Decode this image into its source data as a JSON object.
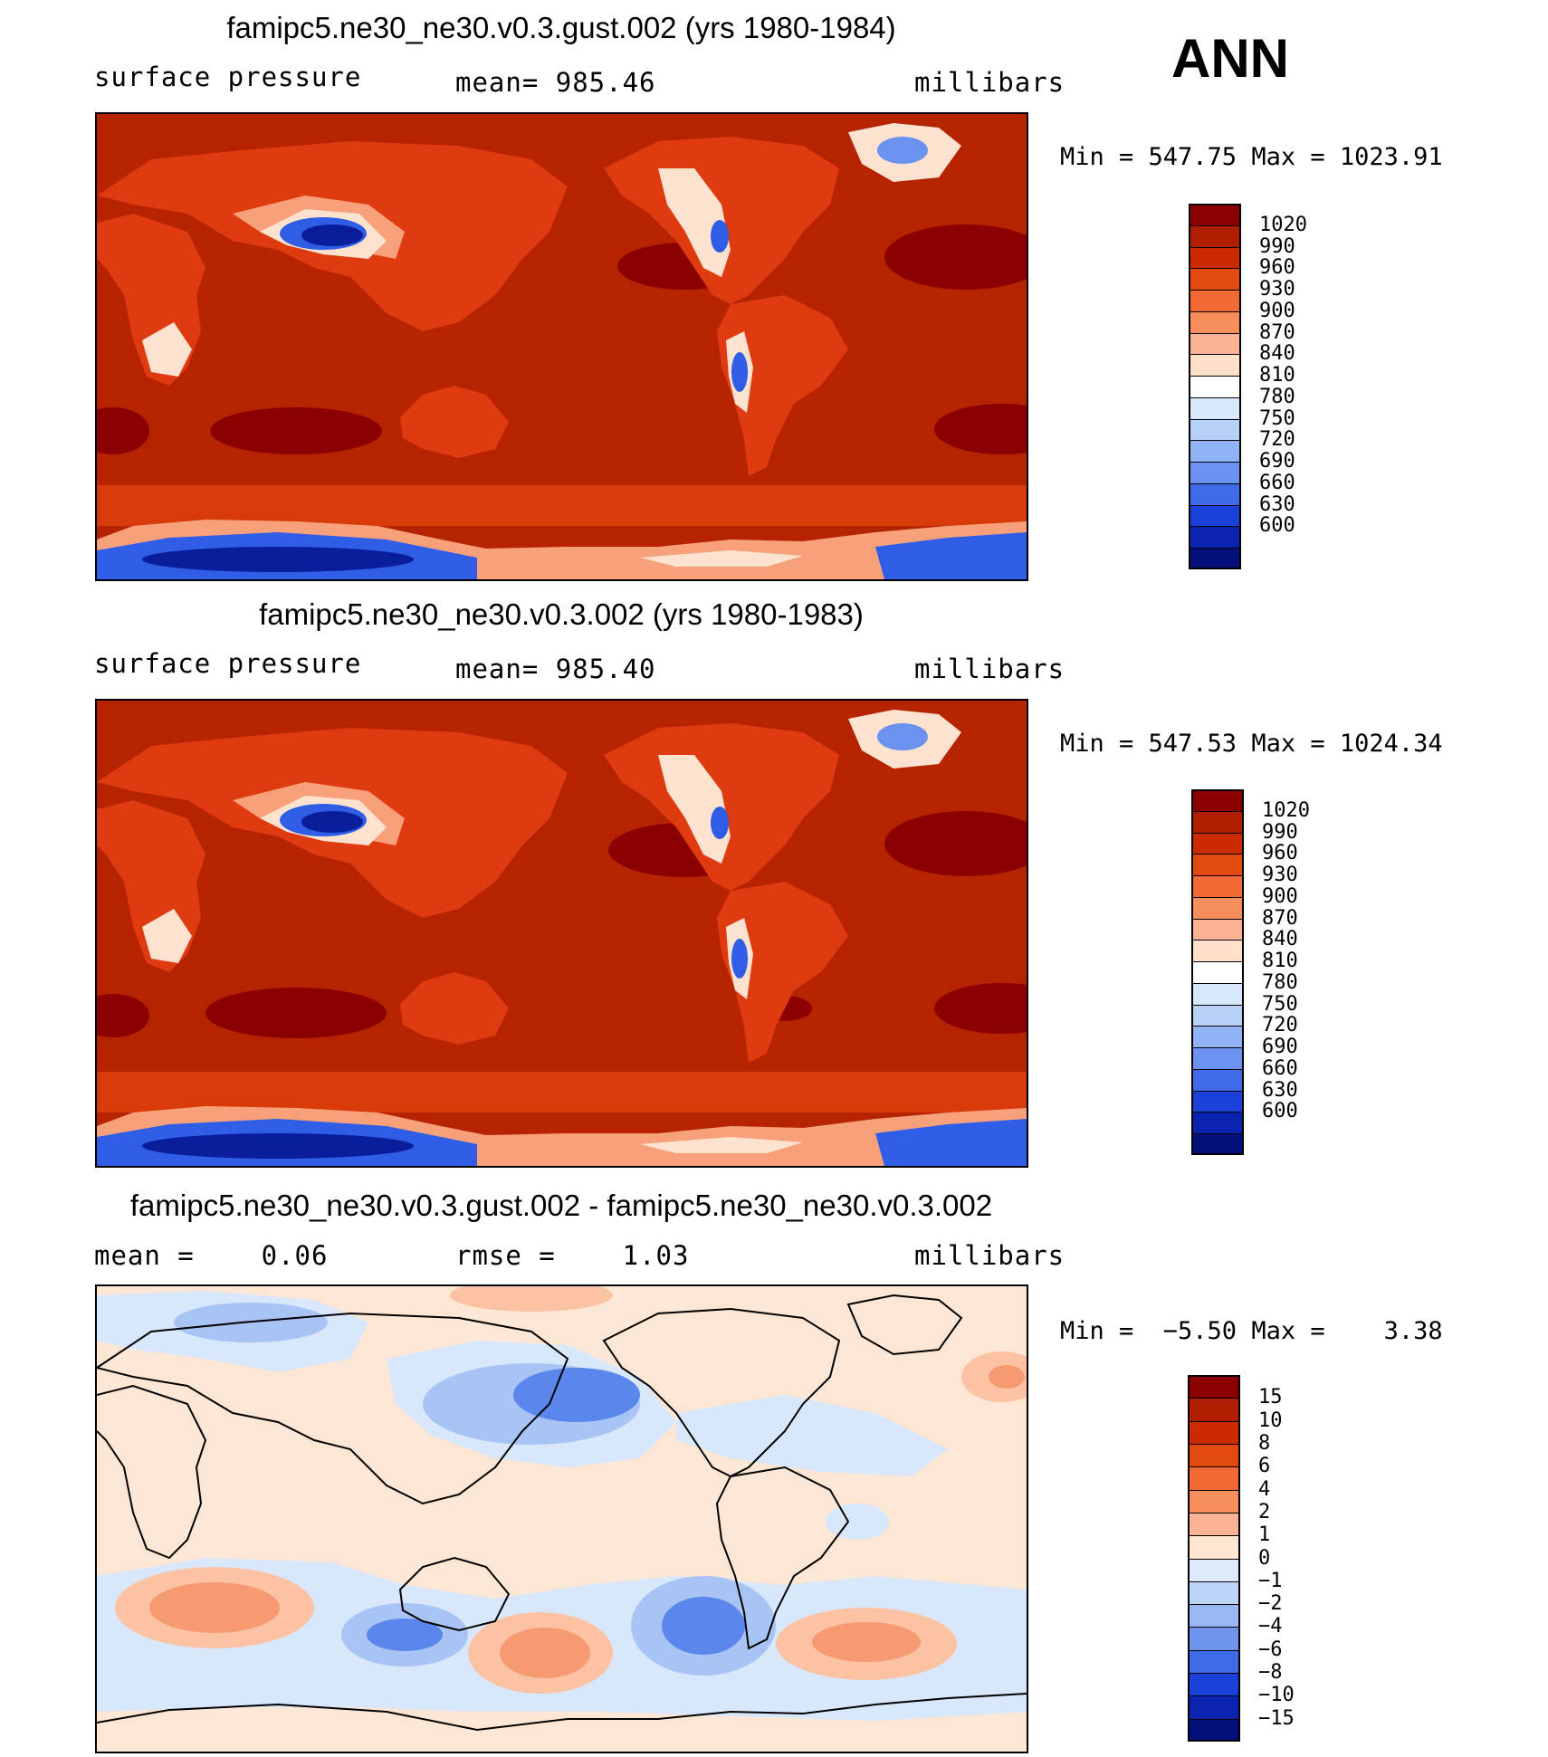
{
  "season": "ANN",
  "panels": [
    {
      "title": "famipc5.ne30_ne30.v0.3.gust.002 (yrs 1980-1984)",
      "left_label": "surface pressure",
      "center_label": "mean= 985.46",
      "right_label": "millibars",
      "minmax": "Min = 547.75 Max = 1023.91"
    },
    {
      "title": "famipc5.ne30_ne30.v0.3.002 (yrs 1980-1983)",
      "left_label": "surface pressure",
      "center_label": "mean= 985.40",
      "right_label": "millibars",
      "minmax": "Min = 547.53 Max = 1024.34"
    },
    {
      "title": "famipc5.ne30_ne30.v0.3.gust.002 - famipc5.ne30_ne30.v0.3.002",
      "left_label": "mean =    0.06",
      "center_label": "rmse =    1.03",
      "right_label": "millibars",
      "minmax": "Min =  −5.50 Max =    3.38"
    }
  ],
  "colorbars": {
    "pressure": {
      "labels": [
        "1020",
        "990",
        "960",
        "930",
        "900",
        "870",
        "840",
        "810",
        "780",
        "750",
        "720",
        "690",
        "660",
        "630",
        "600"
      ],
      "colors": [
        "#8b0000",
        "#b01e00",
        "#cc2a00",
        "#e24a10",
        "#f26a33",
        "#f88e5c",
        "#fbb394",
        "#fee0c8",
        "#ffffff",
        "#d7e8fb",
        "#b6d0f7",
        "#90b4f3",
        "#6a92ee",
        "#3f6ae8",
        "#1a42d8",
        "#0a24b0",
        "#04107a"
      ]
    },
    "difference": {
      "labels": [
        "15",
        "10",
        "8",
        "6",
        "4",
        "2",
        "1",
        "0",
        "−1",
        "−2",
        "−4",
        "−6",
        "−8",
        "−10",
        "−15"
      ],
      "colors": [
        "#8b0000",
        "#b01e00",
        "#cc2a00",
        "#e24a10",
        "#f26a33",
        "#f88e5c",
        "#fbb394",
        "#fee6d0",
        "#dceafb",
        "#bcd4f7",
        "#9ab9f3",
        "#6f94ee",
        "#3f6ae8",
        "#1a42d8",
        "#0a24b0",
        "#04107a"
      ]
    }
  },
  "map_colors": {
    "ocean_full": "#b62300",
    "high_cell": "#8b0000",
    "land_mid": "#e03a10",
    "land_light": "#f7a07a",
    "land_pale": "#fde3cf",
    "ice_blue": "#2f5de6",
    "ice_dark": "#0a1e9c",
    "diff_base": "#fde7d4",
    "diff_neg1": "#d8e7fb",
    "diff_neg2": "#a8c4f5",
    "diff_neg3": "#5b86ec",
    "diff_pos1": "#fbc3a4",
    "diff_pos2": "#f69a72"
  }
}
